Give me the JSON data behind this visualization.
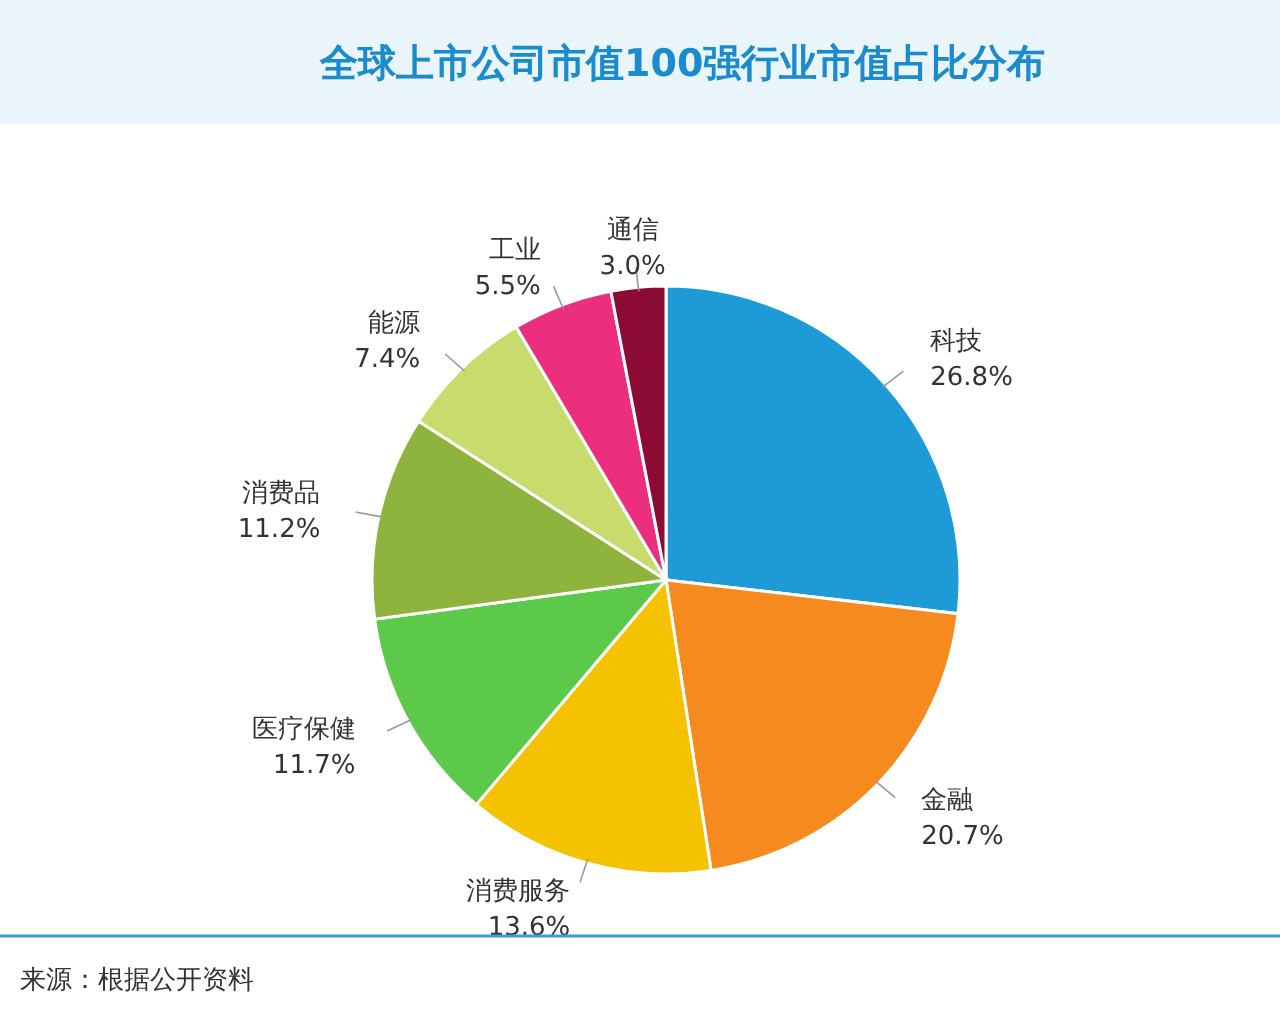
{
  "chart_data": {
    "type": "pie",
    "title": "全球上市公司市值100强行业市值占比分布",
    "categories": [
      "科技",
      "金融",
      "消费服务",
      "医疗保健",
      "消费品",
      "能源",
      "工业",
      "通信"
    ],
    "values": [
      26.8,
      20.7,
      13.6,
      11.7,
      11.2,
      7.4,
      5.5,
      3.0
    ],
    "colors": [
      "#1e9ad6",
      "#f58a1f",
      "#f5c200",
      "#5dc94b",
      "#8fb43d",
      "#c8dc6e",
      "#ec2f7c",
      "#8c0b35"
    ],
    "value_labels": [
      "26.8%",
      "20.7%",
      "13.6%",
      "11.7%",
      "11.2%",
      "7.4%",
      "5.5%",
      "3.0%"
    ],
    "annotations": [
      "来源：根据公开资料"
    ]
  }
}
